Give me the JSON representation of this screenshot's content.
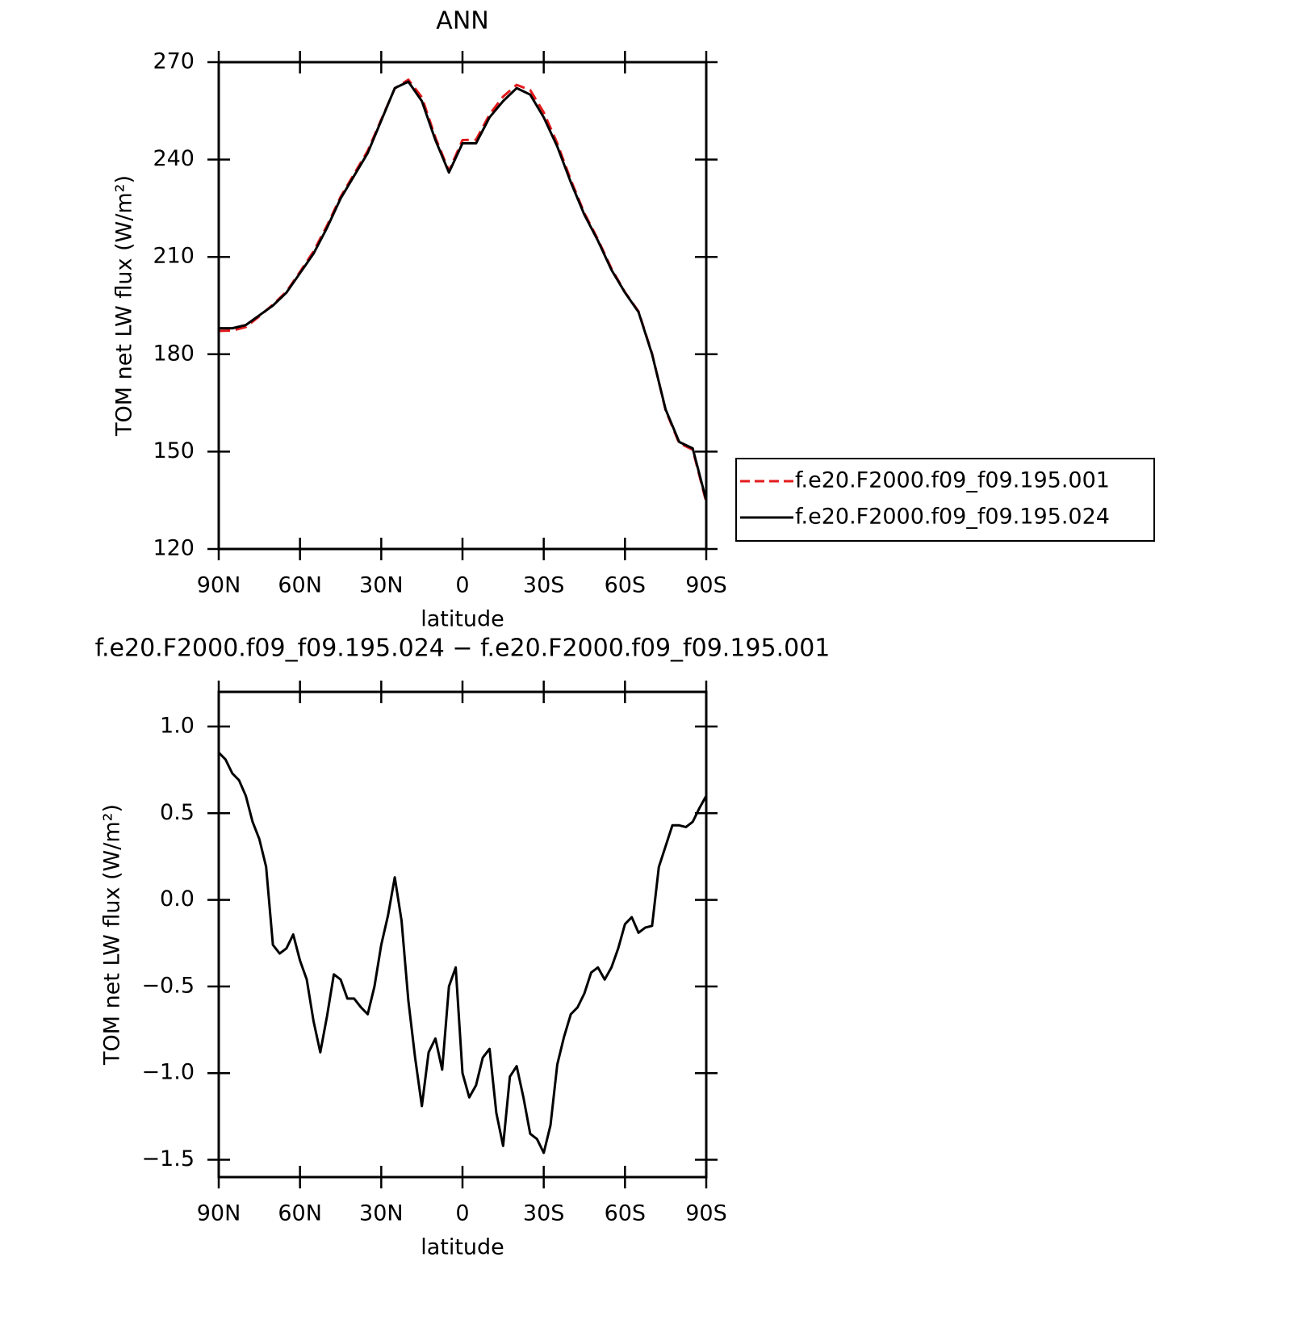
{
  "chart_data": [
    {
      "type": "line",
      "title": "ANN",
      "xlabel": "latitude",
      "ylabel": "TOM net LW flux (W/m²)",
      "x": [
        90,
        85,
        80,
        75,
        70,
        65,
        60,
        55,
        50,
        45,
        40,
        35,
        30,
        25,
        20,
        15,
        10,
        5,
        0,
        -5,
        -10,
        -15,
        -20,
        -25,
        -30,
        -35,
        -40,
        -45,
        -50,
        -55,
        -60,
        -65,
        -70,
        -75,
        -80,
        -85,
        -90
      ],
      "series": [
        {
          "name": "f.e20.F2000.f09_f09.195.001",
          "color": "#e31a1c",
          "dash": true,
          "values": [
            187.2,
            187.3,
            188.4,
            191.7,
            195.3,
            199.3,
            205.4,
            211.7,
            219.7,
            228.5,
            235.6,
            242.7,
            252.3,
            261.9,
            264.6,
            259.2,
            246.8,
            236.5,
            246.0,
            246.1,
            253.9,
            259.4,
            263.0,
            261.4,
            254.5,
            245.0,
            233.7,
            223.5,
            215.4,
            206.4,
            199.1,
            193.2,
            180.2,
            162.7,
            152.6,
            150.6,
            134.4
          ]
        },
        {
          "name": "f.e20.F2000.f09_f09.195.024",
          "color": "#000000",
          "dash": false,
          "values": [
            188.0,
            188.0,
            189.0,
            192.0,
            195.0,
            199.0,
            205.0,
            211.0,
            219.0,
            228.0,
            235.0,
            242.0,
            252.0,
            262.0,
            264.0,
            258.0,
            246.0,
            236.0,
            245.0,
            245.0,
            253.0,
            258.0,
            262.0,
            260.0,
            253.0,
            244.0,
            233.0,
            223.0,
            215.0,
            206.0,
            199.0,
            193.0,
            180.0,
            163.0,
            153.0,
            151.0,
            135.0
          ]
        }
      ],
      "xlim": [
        90,
        -90
      ],
      "ylim": [
        120,
        270
      ],
      "xticks": [
        {
          "value": 90,
          "label": "90N"
        },
        {
          "value": 60,
          "label": "60N"
        },
        {
          "value": 30,
          "label": "30N"
        },
        0,
        {
          "value": -30,
          "label": "30S"
        },
        {
          "value": -60,
          "label": "60S"
        },
        {
          "value": -90,
          "label": "90S"
        }
      ],
      "yticks": [
        120,
        150,
        180,
        210,
        240,
        270
      ],
      "legend": "right"
    },
    {
      "type": "line",
      "title": "f.e20.F2000.f09_f09.195.024 − f.e20.F2000.f09_f09.195.001",
      "xlabel": "latitude",
      "ylabel": "TOM net LW flux (W/m²)",
      "x": [
        90,
        87.5,
        85,
        82.5,
        80,
        77.5,
        75,
        72.5,
        70,
        67.5,
        65,
        62.5,
        60,
        57.5,
        55,
        52.5,
        50,
        47.5,
        45,
        42.5,
        40,
        37.5,
        35,
        32.5,
        30,
        27.5,
        25,
        22.5,
        20,
        17.5,
        15,
        12.5,
        10,
        7.5,
        5,
        2.5,
        0,
        -2.5,
        -5,
        -7.5,
        -10,
        -12.5,
        -15,
        -17.5,
        -20,
        -22.5,
        -25,
        -27.5,
        -30,
        -32.5,
        -35,
        -37.5,
        -40,
        -42.5,
        -45,
        -47.5,
        -50,
        -52.5,
        -55,
        -57.5,
        -60,
        -62.5,
        -65,
        -67.5,
        -70,
        -72.5,
        -75,
        -77.5,
        -80,
        -82.5,
        -85,
        -87.5,
        -90
      ],
      "series": [
        {
          "color": "#000000",
          "dash": false,
          "values": [
            0.85,
            0.81,
            0.73,
            0.69,
            0.6,
            0.45,
            0.35,
            0.19,
            -0.26,
            -0.31,
            -0.28,
            -0.2,
            -0.35,
            -0.46,
            -0.7,
            -0.88,
            -0.67,
            -0.43,
            -0.46,
            -0.57,
            -0.57,
            -0.62,
            -0.66,
            -0.5,
            -0.26,
            -0.09,
            0.13,
            -0.12,
            -0.58,
            -0.91,
            -1.19,
            -0.88,
            -0.8,
            -0.98,
            -0.5,
            -0.39,
            -1.0,
            -1.14,
            -1.07,
            -0.91,
            -0.86,
            -1.23,
            -1.42,
            -1.02,
            -0.96,
            -1.14,
            -1.35,
            -1.38,
            -1.46,
            -1.3,
            -0.95,
            -0.79,
            -0.66,
            -0.62,
            -0.54,
            -0.42,
            -0.39,
            -0.46,
            -0.39,
            -0.28,
            -0.14,
            -0.1,
            -0.19,
            -0.16,
            -0.15,
            0.19,
            0.31,
            0.43,
            0.43,
            0.42,
            0.45,
            0.53,
            0.6
          ]
        }
      ],
      "xlim": [
        90,
        -90
      ],
      "ylim": [
        -1.6,
        1.2
      ],
      "xticks": [
        {
          "value": 90,
          "label": "90N"
        },
        {
          "value": 60,
          "label": "60N"
        },
        {
          "value": 30,
          "label": "30N"
        },
        0,
        {
          "value": -30,
          "label": "30S"
        },
        {
          "value": -60,
          "label": "60S"
        },
        {
          "value": -90,
          "label": "90S"
        }
      ],
      "yticks": [
        {
          "value": -1.5,
          "label": "−1.5"
        },
        {
          "value": -1.0,
          "label": "−1.0"
        },
        {
          "value": -0.5,
          "label": "−0.5"
        },
        {
          "value": 0,
          "label": "0.0"
        },
        0.5,
        {
          "value": 1.0,
          "label": "1.0"
        }
      ]
    }
  ]
}
